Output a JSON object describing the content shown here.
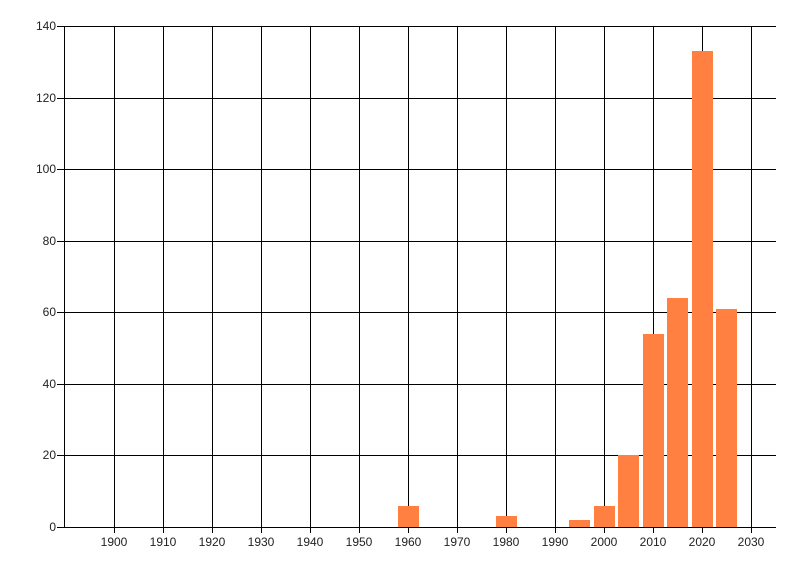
{
  "chart_data": {
    "type": "bar",
    "title": "",
    "xlabel": "",
    "ylabel": "",
    "x": [
      1960,
      1980,
      1995,
      2000,
      2005,
      2010,
      2015,
      2020,
      2025
    ],
    "values": [
      6,
      3,
      2,
      6,
      20,
      54,
      64,
      133,
      61
    ],
    "bar_width_years": 4.3,
    "x_ticks": [
      1900,
      1910,
      1920,
      1930,
      1940,
      1950,
      1960,
      1970,
      1980,
      1990,
      2000,
      2010,
      2020,
      2030
    ],
    "y_ticks": [
      0,
      20,
      40,
      60,
      80,
      100,
      120,
      140
    ],
    "xlim": [
      1890,
      2035
    ],
    "ylim": [
      0,
      140
    ],
    "grid": "on",
    "legend_position": "none",
    "colors": {
      "bar": "#ff8040",
      "grid": "#000000",
      "axis": "#000000",
      "tick_label": "#222222",
      "background": "#ffffff"
    }
  }
}
